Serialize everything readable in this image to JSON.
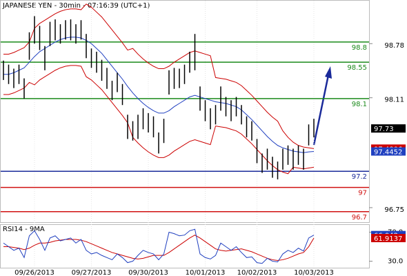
{
  "chart_data": {
    "type": "ohlc",
    "title": "JAPANESE YEN - 30min - 07:16:39 (UTC+1)",
    "categories": [
      null,
      null,
      null,
      null,
      null,
      null,
      "09/26/2013",
      null,
      null,
      null,
      null,
      null,
      null,
      null,
      null,
      null,
      null,
      "09/27/2013",
      null,
      null,
      null,
      null,
      null,
      null,
      null,
      null,
      null,
      null,
      "09/30/2013",
      null,
      null,
      null,
      null,
      null,
      null,
      null,
      null,
      null,
      null,
      "10/01/2013",
      null,
      null,
      null,
      null,
      null,
      null,
      null,
      null,
      null,
      "10/02/2013",
      null,
      null,
      null,
      null,
      null,
      null,
      null,
      null,
      null,
      null,
      "10/03/2013"
    ],
    "high": [
      98.57,
      98.52,
      98.47,
      98.52,
      98.35,
      98.92,
      99.12,
      99.0,
      98.75,
      99.05,
      99.08,
      99.02,
      99.07,
      99.08,
      99.02,
      99.07,
      98.9,
      98.72,
      98.68,
      98.58,
      98.48,
      98.32,
      98.42,
      98.28,
      97.9,
      97.82,
      97.9,
      97.98,
      97.92,
      97.88,
      97.68,
      97.85,
      98.45,
      98.48,
      98.47,
      98.52,
      98.68,
      98.9,
      98.25,
      98.08,
      97.98,
      98.02,
      98.25,
      98.12,
      98.08,
      98.12,
      98.02,
      97.88,
      97.82,
      97.6,
      97.42,
      97.48,
      97.38,
      97.32,
      97.48,
      97.52,
      97.48,
      97.52,
      97.48,
      97.78,
      97.85
    ],
    "low": [
      98.33,
      98.28,
      98.23,
      98.28,
      98.1,
      98.58,
      98.78,
      98.7,
      98.45,
      98.75,
      98.82,
      98.78,
      98.83,
      98.82,
      98.78,
      98.83,
      98.6,
      98.48,
      98.42,
      98.32,
      98.22,
      98.08,
      98.18,
      98.02,
      97.6,
      97.58,
      97.6,
      97.72,
      97.68,
      97.62,
      97.42,
      97.55,
      98.15,
      98.22,
      98.23,
      98.28,
      98.42,
      98.45,
      97.95,
      97.82,
      97.72,
      97.78,
      97.95,
      97.88,
      97.82,
      97.88,
      97.78,
      97.62,
      97.58,
      97.3,
      97.18,
      97.22,
      97.12,
      97.1,
      97.22,
      97.28,
      97.22,
      97.28,
      97.22,
      97.52,
      97.62
    ],
    "bar_color": "#000000",
    "lines": [
      {
        "color": "#cc0000",
        "values": [
          98.65,
          98.65,
          98.67,
          98.7,
          98.73,
          98.8,
          98.97,
          99.03,
          99.07,
          99.11,
          99.15,
          99.18,
          99.2,
          99.21,
          99.21,
          99.2,
          99.27,
          99.23,
          99.17,
          99.11,
          99.03,
          98.95,
          98.87,
          98.79,
          98.7,
          98.72,
          98.65,
          98.59,
          98.54,
          98.5,
          98.47,
          98.47,
          98.5,
          98.55,
          98.59,
          98.63,
          98.67,
          98.69,
          98.67,
          98.65,
          98.63,
          98.36,
          98.35,
          98.34,
          98.32,
          98.3,
          98.26,
          98.2,
          98.14,
          98.07,
          98.0,
          97.93,
          97.87,
          97.82,
          97.7,
          97.62,
          97.56,
          97.52,
          97.5,
          97.49,
          97.4806
        ]
      },
      {
        "color": "#cc0000",
        "values": [
          98.15,
          98.15,
          98.17,
          98.2,
          98.23,
          98.3,
          98.27,
          98.33,
          98.37,
          98.41,
          98.45,
          98.48,
          98.5,
          98.51,
          98.51,
          98.5,
          98.37,
          98.33,
          98.27,
          98.21,
          98.13,
          98.05,
          97.97,
          97.89,
          97.8,
          97.62,
          97.55,
          97.49,
          97.44,
          97.4,
          97.37,
          97.37,
          97.4,
          97.45,
          97.49,
          97.53,
          97.57,
          97.59,
          97.57,
          97.55,
          97.53,
          97.76,
          97.75,
          97.74,
          97.72,
          97.7,
          97.66,
          97.6,
          97.54,
          97.47,
          97.4,
          97.33,
          97.27,
          97.22,
          97.19,
          97.17,
          97.25,
          97.24,
          97.23,
          97.24,
          97.25
        ]
      },
      {
        "color": "#2040c0",
        "values": [
          98.4,
          98.4,
          98.42,
          98.45,
          98.48,
          98.55,
          98.62,
          98.68,
          98.72,
          98.76,
          98.8,
          98.83,
          98.85,
          98.86,
          98.86,
          98.85,
          98.82,
          98.78,
          98.72,
          98.66,
          98.58,
          98.5,
          98.42,
          98.34,
          98.25,
          98.17,
          98.1,
          98.04,
          97.99,
          97.95,
          97.92,
          97.92,
          97.95,
          98.0,
          98.04,
          98.08,
          98.12,
          98.14,
          98.12,
          98.1,
          98.08,
          98.06,
          98.05,
          98.04,
          98.02,
          98.0,
          97.96,
          97.9,
          97.84,
          97.77,
          97.7,
          97.63,
          97.57,
          97.52,
          97.49,
          97.47,
          97.45,
          97.44,
          97.43,
          97.44,
          97.4452
        ]
      }
    ],
    "last_price": 97.73,
    "ylim": [
      96.57,
      99.32
    ],
    "yticks": [
      96.75,
      98.11,
      98.78
    ],
    "levels": [
      {
        "value": 98.8,
        "color": "#1a8a1a"
      },
      {
        "value": 98.55,
        "color": "#1a8a1a"
      },
      {
        "value": 98.1,
        "color": "#1a8a1a"
      },
      {
        "value": 97.2,
        "color": "#1a2a9a"
      },
      {
        "value": 97,
        "color": "#d01010"
      },
      {
        "value": 96.7,
        "color": "#d01010"
      }
    ],
    "rsi": {
      "title": "RSI14 - 9MA",
      "color": "#1f3fbf",
      "ma_color": "#cc0000",
      "values": [
        55,
        50,
        45,
        48,
        35,
        65,
        72,
        60,
        45,
        62,
        65,
        58,
        60,
        62,
        55,
        60,
        45,
        40,
        42,
        38,
        35,
        32,
        40,
        35,
        28,
        30,
        38,
        45,
        42,
        40,
        32,
        40,
        70,
        68,
        65,
        66,
        72,
        74,
        40,
        35,
        33,
        38,
        55,
        50,
        45,
        50,
        42,
        35,
        36,
        28,
        27,
        34,
        30,
        29,
        40,
        45,
        42,
        48,
        44,
        62,
        66.042
      ],
      "ma_values": [
        50,
        50,
        49,
        48,
        46,
        48,
        52,
        55,
        55,
        56,
        58,
        59,
        60,
        60,
        60,
        59,
        57,
        54,
        51,
        48,
        45,
        42,
        40,
        38,
        36,
        34,
        33,
        34,
        36,
        38,
        38,
        38,
        42,
        47,
        52,
        57,
        62,
        66,
        62,
        57,
        52,
        47,
        45,
        44,
        45,
        46,
        47,
        45,
        43,
        40,
        37,
        34,
        32,
        31,
        32,
        34,
        37,
        40,
        42,
        50,
        61.9137
      ],
      "ylim": [
        21,
        80
      ],
      "yticks": [
        {
          "value": 30,
          "label": "30.0"
        },
        {
          "value": 70,
          "label": "70.0"
        }
      ]
    }
  }
}
